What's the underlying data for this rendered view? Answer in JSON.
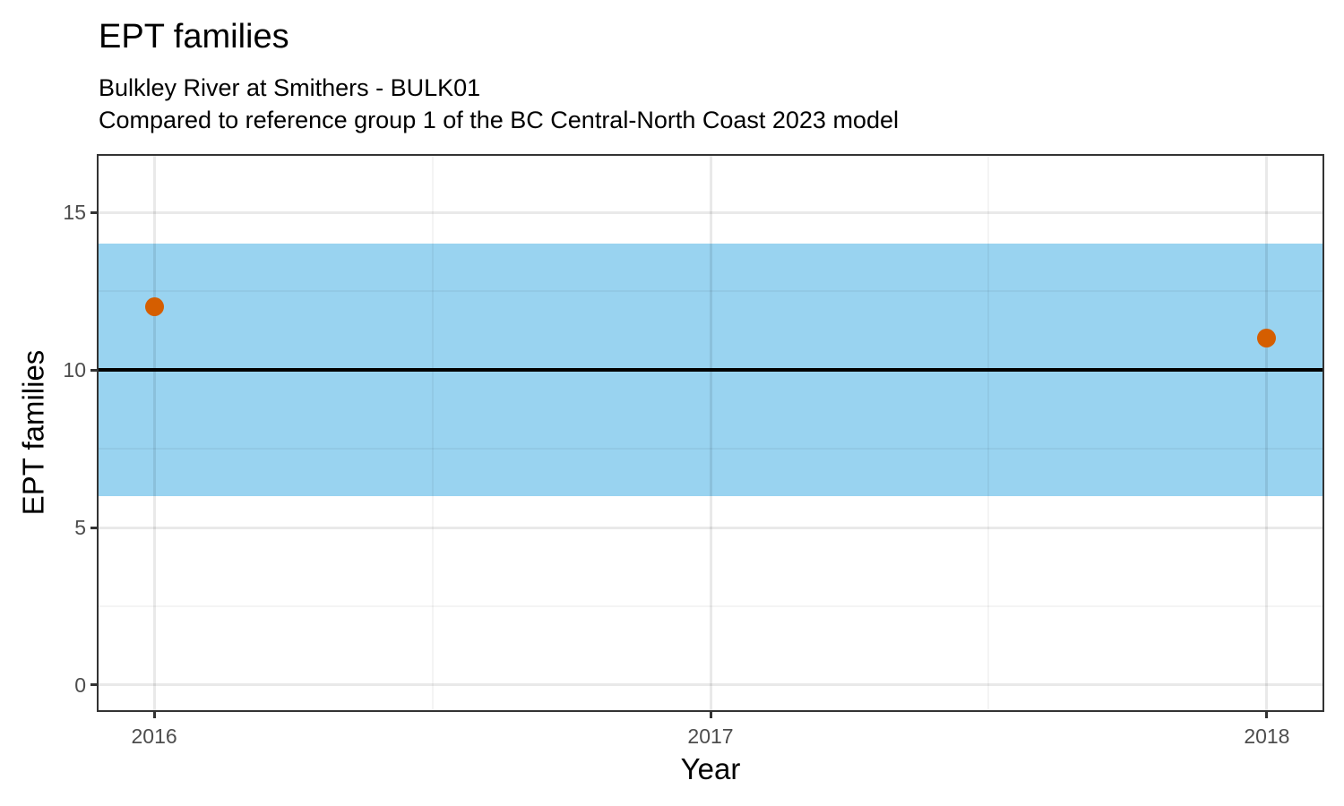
{
  "header": {
    "title": "EPT families",
    "subtitle_line1": "Bulkley River at Smithers - BULK01",
    "subtitle_line2": "Compared to reference group 1 of the BC Central-North Coast 2023 model"
  },
  "chart_data": {
    "type": "scatter",
    "title": "EPT families",
    "subtitle": [
      "Bulkley River at Smithers - BULK01",
      "Compared to reference group 1 of the BC Central-North Coast 2023 model"
    ],
    "xlabel": "Year",
    "ylabel": "EPT families",
    "xlim": [
      2015.9,
      2018.1
    ],
    "ylim": [
      -0.8,
      16.8
    ],
    "x_ticks": [
      2016,
      2017,
      2018
    ],
    "x_minor_gridlines": [
      2016.5,
      2017.5
    ],
    "y_ticks": [
      0,
      5,
      10,
      15
    ],
    "y_minor_gridlines": [
      2.5,
      7.5,
      12.5
    ],
    "grid": true,
    "legend": false,
    "reference_band": {
      "ymin": 6,
      "ymax": 14,
      "color": "#99D3F0",
      "meaning": "reference group range"
    },
    "reference_line": {
      "y": 10,
      "color": "#000000"
    },
    "series": [
      {
        "name": "observed EPT families",
        "color": "#D55E00",
        "points": [
          {
            "x": 2016,
            "y": 12
          },
          {
            "x": 2018,
            "y": 11
          }
        ]
      }
    ]
  },
  "style": {
    "band_color": "#99D3F0",
    "point_color": "#D55E00",
    "axis_color": "#333333",
    "tick_label_color": "#4d4d4d"
  }
}
